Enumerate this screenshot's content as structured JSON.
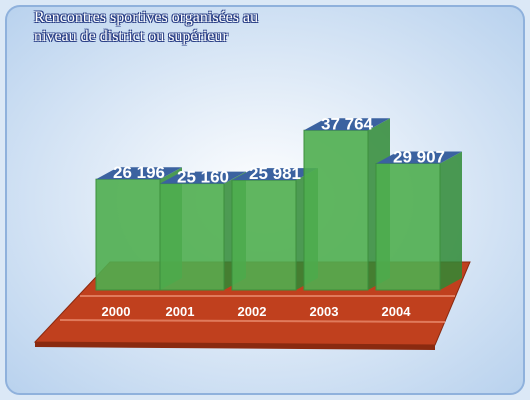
{
  "chart_data": {
    "type": "bar",
    "title": "Rencontres sportives organisées au niveau de district ou supérieur",
    "categories": [
      "2000",
      "2001",
      "2002",
      "2003",
      "2004"
    ],
    "values": [
      26196,
      25160,
      25981,
      37764,
      29907
    ],
    "value_labels": [
      "26 196",
      "25 160",
      "25 981",
      "37 764",
      "29 907"
    ],
    "color": "#4fae4f"
  }
}
